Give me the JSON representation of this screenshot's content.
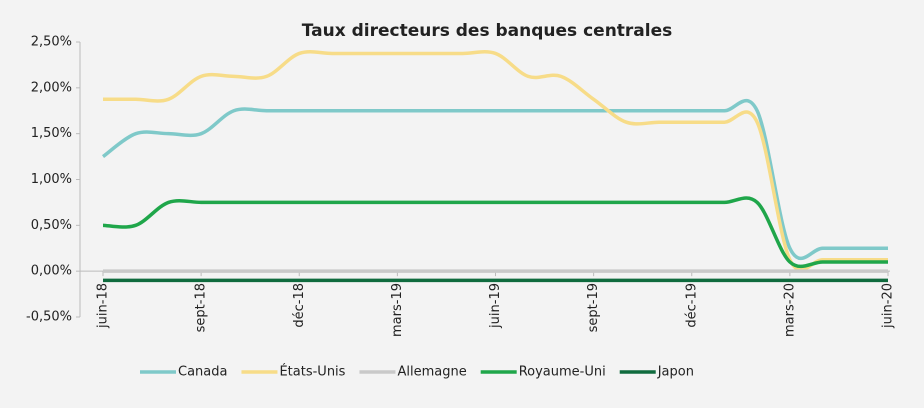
{
  "chart_data": {
    "type": "line",
    "title": "Taux directeurs des banques centrales",
    "categories": [
      "juin-18",
      null,
      null,
      "sept-18",
      null,
      null,
      "déc-18",
      null,
      null,
      "mars-19",
      null,
      null,
      "juin-19",
      null,
      null,
      "sept-19",
      null,
      null,
      "déc-19",
      null,
      null,
      "mars-20",
      null,
      null,
      "juin-20"
    ],
    "series": [
      {
        "name": "Canada",
        "color": "#7fc9c9",
        "values": [
          1.25,
          1.5,
          1.5,
          1.5,
          1.75,
          1.75,
          1.75,
          1.75,
          1.75,
          1.75,
          1.75,
          1.75,
          1.75,
          1.75,
          1.75,
          1.75,
          1.75,
          1.75,
          1.75,
          1.75,
          1.75,
          0.25,
          0.25,
          0.25,
          0.25
        ]
      },
      {
        "name": "États-Unis",
        "color": "#f7dc88",
        "values": [
          1.875,
          1.875,
          1.875,
          2.125,
          2.125,
          2.125,
          2.375,
          2.375,
          2.375,
          2.375,
          2.375,
          2.375,
          2.375,
          2.125,
          2.125,
          1.875,
          1.625,
          1.625,
          1.625,
          1.625,
          1.625,
          0.125,
          0.125,
          0.125,
          0.125
        ]
      },
      {
        "name": "Allemagne",
        "color": "#c9c9c9",
        "values": [
          0,
          0,
          0,
          0,
          0,
          0,
          0,
          0,
          0,
          0,
          0,
          0,
          0,
          0,
          0,
          0,
          0,
          0,
          0,
          0,
          0,
          0,
          0,
          0,
          0
        ]
      },
      {
        "name": "Royaume-Uni",
        "color": "#1fa64a",
        "values": [
          0.5,
          0.5,
          0.75,
          0.75,
          0.75,
          0.75,
          0.75,
          0.75,
          0.75,
          0.75,
          0.75,
          0.75,
          0.75,
          0.75,
          0.75,
          0.75,
          0.75,
          0.75,
          0.75,
          0.75,
          0.75,
          0.1,
          0.1,
          0.1,
          0.1
        ]
      },
      {
        "name": "Japon",
        "color": "#0f6b3e",
        "values": [
          -0.1,
          -0.1,
          -0.1,
          -0.1,
          -0.1,
          -0.1,
          -0.1,
          -0.1,
          -0.1,
          -0.1,
          -0.1,
          -0.1,
          -0.1,
          -0.1,
          -0.1,
          -0.1,
          -0.1,
          -0.1,
          -0.1,
          -0.1,
          -0.1,
          -0.1,
          -0.1,
          -0.1,
          -0.1
        ]
      }
    ],
    "ylim": [
      -0.5,
      2.5
    ],
    "yticks": [
      {
        "value": -0.5,
        "label": "-0,50%"
      },
      {
        "value": 0,
        "label": "0,00%"
      },
      {
        "value": 0.5,
        "label": "0,50%"
      },
      {
        "value": 1,
        "label": "1,00%"
      },
      {
        "value": 1.5,
        "label": "1,50%"
      },
      {
        "value": 2,
        "label": "2,00%"
      },
      {
        "value": 2.5,
        "label": "2,50%"
      }
    ],
    "legend": "bottom"
  }
}
